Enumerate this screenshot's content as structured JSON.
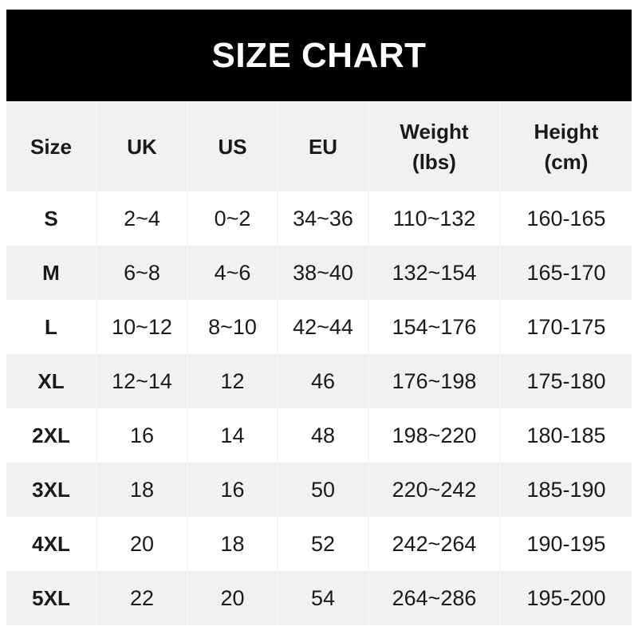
{
  "title": "SIZE CHART",
  "headers": [
    "Size",
    "UK",
    "US",
    "EU",
    "Weight\n(lbs)",
    "Height\n(cm)"
  ],
  "rows": [
    [
      "S",
      "2~4",
      "0~2",
      "34~36",
      "110~132",
      "160-165"
    ],
    [
      "M",
      "6~8",
      "4~6",
      "38~40",
      "132~154",
      "165-170"
    ],
    [
      "L",
      "10~12",
      "8~10",
      "42~44",
      "154~176",
      "170-175"
    ],
    [
      "XL",
      "12~14",
      "12",
      "46",
      "176~198",
      "175-180"
    ],
    [
      "2XL",
      "16",
      "14",
      "48",
      "198~220",
      "180-185"
    ],
    [
      "3XL",
      "18",
      "16",
      "50",
      "220~242",
      "185-190"
    ],
    [
      "4XL",
      "20",
      "18",
      "52",
      "242~264",
      "190-195"
    ],
    [
      "5XL",
      "22",
      "20",
      "54",
      "264~286",
      "195-200"
    ]
  ],
  "colors": {
    "title_bg": "#000000",
    "stripe": "#f1f1f1"
  }
}
